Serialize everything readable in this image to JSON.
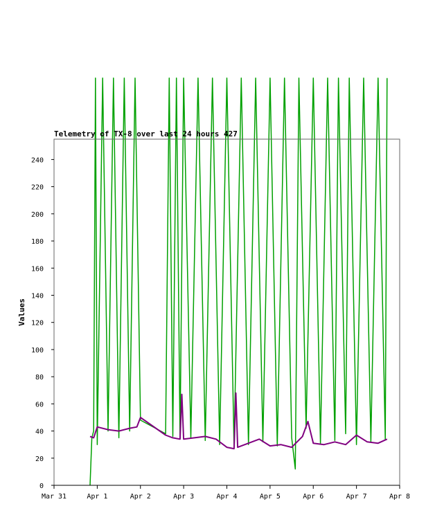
{
  "chart_data": {
    "type": "line",
    "title": "Telemetry of TX-8 over last 24 hours 427",
    "ylabel": "Values",
    "xlabel": "",
    "ylim": [
      0,
      255
    ],
    "xlim": [
      "2024-03-31",
      "2024-04-08"
    ],
    "yticks": [
      0,
      20,
      40,
      60,
      80,
      100,
      120,
      140,
      160,
      180,
      200,
      220,
      240
    ],
    "xticks": [
      {
        "date": "2024-03-31",
        "label": "Mar 31"
      },
      {
        "date": "2024-04-01",
        "label": "Apr 1"
      },
      {
        "date": "2024-04-02",
        "label": "Apr 2"
      },
      {
        "date": "2024-04-03",
        "label": "Apr 3"
      },
      {
        "date": "2024-04-04",
        "label": "Apr 4"
      },
      {
        "date": "2024-04-05",
        "label": "Apr 5"
      },
      {
        "date": "2024-04-06",
        "label": "Apr 6"
      },
      {
        "date": "2024-04-07",
        "label": "Apr 7"
      },
      {
        "date": "2024-04-08",
        "label": "Apr 8"
      }
    ],
    "grid": false,
    "legend": "none",
    "series": [
      {
        "color": "#00a000",
        "x": [
          "2024-03-31 20:00",
          "2024-03-31 21:00",
          "2024-03-31 22:00",
          "2024-03-31 23:00",
          "2024-04-01 00:00",
          "2024-04-01 03:00",
          "2024-04-01 06:00",
          "2024-04-01 09:00",
          "2024-04-01 12:00",
          "2024-04-01 15:00",
          "2024-04-01 18:00",
          "2024-04-01 21:00",
          "2024-04-02 00:00",
          "2024-04-02 14:00",
          "2024-04-02 16:00",
          "2024-04-02 18:00",
          "2024-04-02 20:00",
          "2024-04-02 22:00",
          "2024-04-03 00:00",
          "2024-04-03 04:00",
          "2024-04-03 08:00",
          "2024-04-03 12:00",
          "2024-04-03 16:00",
          "2024-04-03 20:00",
          "2024-04-04 00:00",
          "2024-04-04 04:00",
          "2024-04-04 08:00",
          "2024-04-04 12:00",
          "2024-04-04 16:00",
          "2024-04-04 20:00",
          "2024-04-05 00:00",
          "2024-04-05 04:00",
          "2024-04-05 08:00",
          "2024-04-05 12:00",
          "2024-04-05 14:00",
          "2024-04-05 16:00",
          "2024-04-05 20:00",
          "2024-04-06 00:00",
          "2024-04-06 04:00",
          "2024-04-06 08:00",
          "2024-04-06 12:00",
          "2024-04-06 14:00",
          "2024-04-06 18:00",
          "2024-04-06 20:00",
          "2024-04-07 00:00",
          "2024-04-07 04:00",
          "2024-04-07 08:00",
          "2024-04-07 12:00",
          "2024-04-07 16:00",
          "2024-04-07 17:00"
        ],
        "y": [
          0,
          35,
          40,
          300,
          30,
          300,
          40,
          300,
          35,
          300,
          40,
          300,
          48,
          38,
          300,
          36,
          300,
          34,
          300,
          35,
          300,
          33,
          300,
          30,
          300,
          28,
          300,
          30,
          300,
          32,
          300,
          29,
          300,
          35,
          12,
          300,
          42,
          300,
          31,
          300,
          33,
          300,
          38,
          300,
          30,
          300,
          32,
          300,
          34,
          300
        ]
      },
      {
        "color": "#800080",
        "x": [
          "2024-03-31 20:00",
          "2024-03-31 22:00",
          "2024-04-01 00:00",
          "2024-04-01 06:00",
          "2024-04-01 12:00",
          "2024-04-01 18:00",
          "2024-04-01 22:00",
          "2024-04-02 00:00",
          "2024-04-02 14:00",
          "2024-04-02 18:00",
          "2024-04-02 22:00",
          "2024-04-02 23:00",
          "2024-04-03 00:00",
          "2024-04-03 06:00",
          "2024-04-03 12:00",
          "2024-04-03 18:00",
          "2024-04-04 00:00",
          "2024-04-04 04:00",
          "2024-04-04 05:00",
          "2024-04-04 06:00",
          "2024-04-04 12:00",
          "2024-04-04 18:00",
          "2024-04-05 00:00",
          "2024-04-05 06:00",
          "2024-04-05 12:00",
          "2024-04-05 18:00",
          "2024-04-05 21:00",
          "2024-04-06 00:00",
          "2024-04-06 06:00",
          "2024-04-06 12:00",
          "2024-04-06 18:00",
          "2024-04-07 00:00",
          "2024-04-07 06:00",
          "2024-04-07 12:00",
          "2024-04-07 17:00"
        ],
        "y": [
          36,
          35,
          43,
          41,
          40,
          42,
          43,
          50,
          37,
          35,
          34,
          67,
          34,
          35,
          36,
          34,
          28,
          27,
          68,
          28,
          31,
          34,
          29,
          30,
          28,
          36,
          47,
          31,
          30,
          32,
          30,
          37,
          32,
          31,
          34
        ]
      }
    ]
  }
}
